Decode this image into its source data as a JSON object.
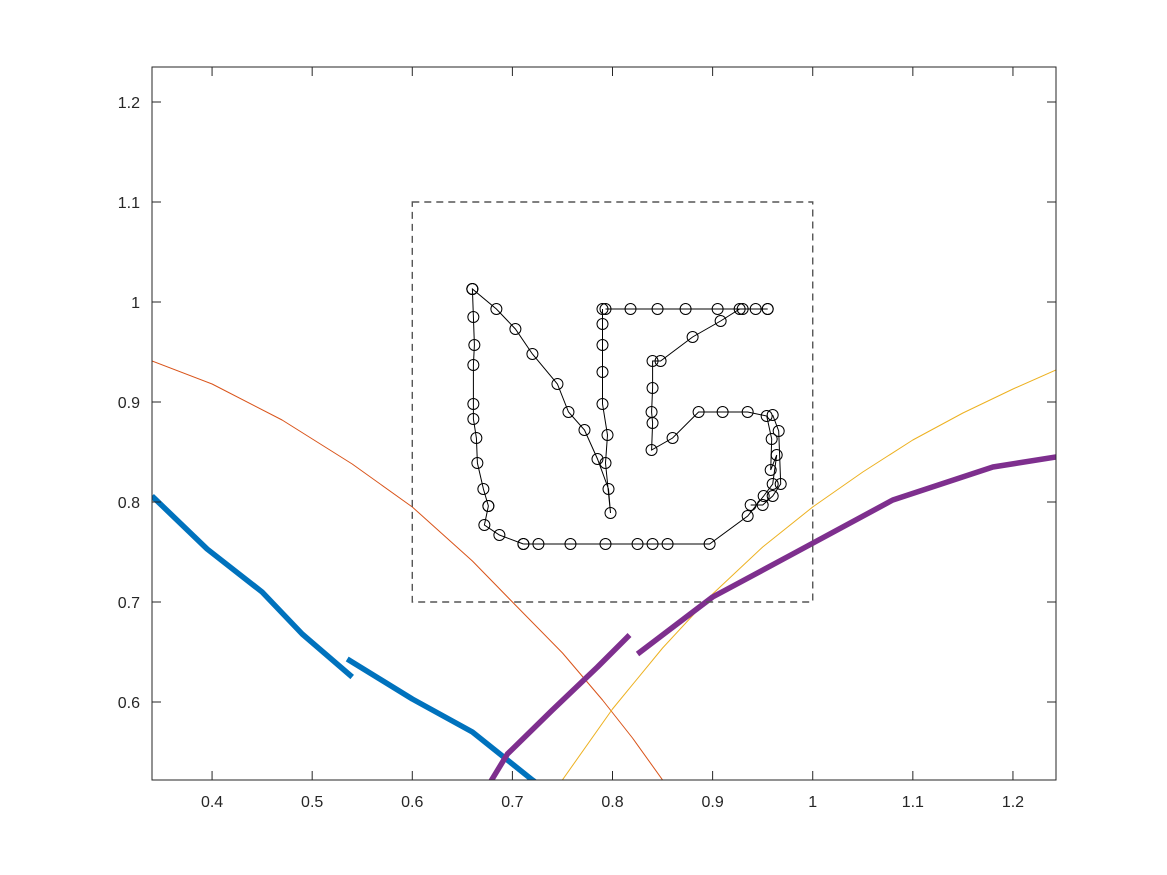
{
  "chart_data": {
    "type": "line",
    "title": "",
    "xlabel": "",
    "ylabel": "",
    "xlim": [
      0.34,
      1.243
    ],
    "ylim": [
      0.522,
      1.235
    ],
    "grid": false,
    "xticks": [
      0.4,
      0.5,
      0.6,
      0.7,
      0.8,
      0.9,
      1,
      1.1,
      1.2
    ],
    "xtick_labels": [
      "0.4",
      "0.5",
      "0.6",
      "0.7",
      "0.8",
      "0.9",
      "1",
      "1.1",
      "1.2"
    ],
    "yticks": [
      0.6,
      0.7,
      0.8,
      0.9,
      1,
      1.1,
      1.2
    ],
    "ytick_labels": [
      "0.6",
      "0.7",
      "0.8",
      "0.9",
      "1",
      "1.1",
      "1.2"
    ],
    "series": [
      {
        "name": "red-curve",
        "color": "#d95319",
        "style": "thin",
        "x": [
          0.34,
          0.4,
          0.47,
          0.54,
          0.6,
          0.66,
          0.7,
          0.75,
          0.79,
          0.82,
          0.855
        ],
        "y": [
          0.941,
          0.918,
          0.882,
          0.838,
          0.795,
          0.741,
          0.7,
          0.649,
          0.602,
          0.564,
          0.515
        ]
      },
      {
        "name": "yellow-curve",
        "color": "#edb120",
        "style": "thin",
        "x": [
          0.745,
          0.8,
          0.85,
          0.9,
          0.95,
          1.0,
          1.05,
          1.1,
          1.15,
          1.2,
          1.243
        ],
        "y": [
          0.515,
          0.593,
          0.654,
          0.708,
          0.755,
          0.795,
          0.83,
          0.862,
          0.889,
          0.913,
          0.932
        ]
      },
      {
        "name": "blue-segment-1",
        "color": "#0072bd",
        "style": "thick",
        "x": [
          0.34,
          0.395,
          0.45,
          0.49,
          0.54
        ],
        "y": [
          0.806,
          0.753,
          0.71,
          0.668,
          0.625
        ]
      },
      {
        "name": "blue-segment-2",
        "color": "#0072bd",
        "style": "thick",
        "x": [
          0.535,
          0.6,
          0.66,
          0.72,
          0.73
        ],
        "y": [
          0.643,
          0.603,
          0.57,
          0.522,
          0.515
        ]
      },
      {
        "name": "purple-segment-1",
        "color": "#7e2f8e",
        "style": "thick",
        "x": [
          0.675,
          0.695,
          0.74,
          0.785,
          0.817
        ],
        "y": [
          0.515,
          0.548,
          0.592,
          0.635,
          0.667
        ]
      },
      {
        "name": "purple-segment-2",
        "color": "#7e2f8e",
        "style": "thick",
        "x": [
          0.825,
          0.9,
          0.98,
          1.08,
          1.18,
          1.243
        ],
        "y": [
          0.648,
          0.705,
          0.748,
          0.802,
          0.835,
          0.845
        ]
      },
      {
        "name": "ng-letters",
        "color": "#000000",
        "style": "markers",
        "segments": [
          {
            "name": "letter-N",
            "x": [
              0.676,
              0.671,
              0.665,
              0.664,
              0.661,
              0.661,
              0.661,
              0.662,
              0.661,
              0.66,
              0.66,
              0.66,
              0.684,
              0.703,
              0.72,
              0.745,
              0.756,
              0.772,
              0.785,
              0.796,
              0.798,
              0.793,
              0.795,
              0.79,
              0.79,
              0.79,
              0.79,
              0.79
            ],
            "y": [
              0.796,
              0.813,
              0.839,
              0.864,
              0.883,
              0.898,
              0.937,
              0.957,
              0.985,
              1.013,
              1.013,
              1.013,
              0.993,
              0.973,
              0.948,
              0.918,
              0.89,
              0.872,
              0.843,
              0.813,
              0.789,
              0.839,
              0.867,
              0.898,
              0.93,
              0.957,
              0.978,
              0.993
            ]
          },
          {
            "name": "letter-N-lower-left",
            "x": [
              0.676,
              0.672,
              0.687,
              0.711
            ],
            "y": [
              0.796,
              0.777,
              0.767,
              0.758
            ]
          },
          {
            "name": "letter-G",
            "x": [
              0.711,
              0.726,
              0.758,
              0.793,
              0.825,
              0.84,
              0.855,
              0.897,
              0.935,
              0.951,
              0.96,
              0.964,
              0.958,
              0.959,
              0.954,
              0.935,
              0.91,
              0.886,
              0.86,
              0.839,
              0.84,
              0.839,
              0.84,
              0.84,
              0.848,
              0.88,
              0.908,
              0.927,
              0.943,
              0.955,
              0.955,
              0.93,
              0.905,
              0.873,
              0.845,
              0.818,
              0.793
            ],
            "y": [
              0.758,
              0.758,
              0.758,
              0.758,
              0.758,
              0.758,
              0.758,
              0.758,
              0.786,
              0.806,
              0.818,
              0.847,
              0.832,
              0.863,
              0.886,
              0.89,
              0.89,
              0.89,
              0.864,
              0.852,
              0.879,
              0.89,
              0.914,
              0.941,
              0.941,
              0.965,
              0.981,
              0.993,
              0.993,
              0.993,
              0.993,
              0.993,
              0.993,
              0.993,
              0.993,
              0.993,
              0.993
            ]
          },
          {
            "name": "letter-G-upper-hook",
            "x": [
              0.938,
              0.95,
              0.96,
              0.968,
              0.966,
              0.96
            ],
            "y": [
              0.797,
              0.797,
              0.806,
              0.818,
              0.871,
              0.887
            ]
          }
        ]
      }
    ],
    "annotations": [
      {
        "type": "dashed-rectangle",
        "color": "#555555",
        "x": [
          0.6,
          1.0
        ],
        "y": [
          0.7,
          1.1
        ]
      }
    ]
  }
}
